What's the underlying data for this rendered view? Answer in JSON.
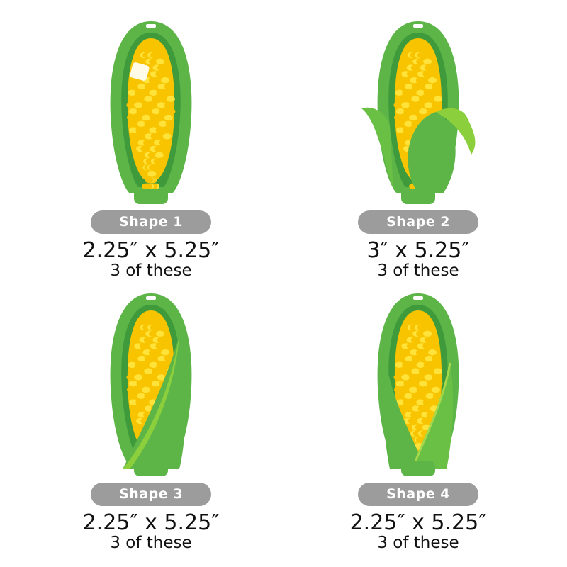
{
  "shapes": [
    {
      "label": "Shape 1",
      "size": "2.25″ x 5.25″",
      "count": "3 of these",
      "variant": "butter"
    },
    {
      "label": "Shape 2",
      "size": "3″ x 5.25″",
      "count": "3 of these",
      "variant": "leaf-open"
    },
    {
      "label": "Shape 3",
      "size": "2.25″ x 5.25″",
      "count": "3 of these",
      "variant": "husk-one-side"
    },
    {
      "label": "Shape 4",
      "size": "2.25″ x 5.25″",
      "count": "3 of these",
      "variant": "husk-both-sides"
    }
  ],
  "colors": {
    "husk": "#5db548",
    "husk_dark": "#3f9a3b",
    "kernel": "#f8c400",
    "kernel_light": "#ffe23a",
    "label_bg": "#9c9c9c"
  }
}
